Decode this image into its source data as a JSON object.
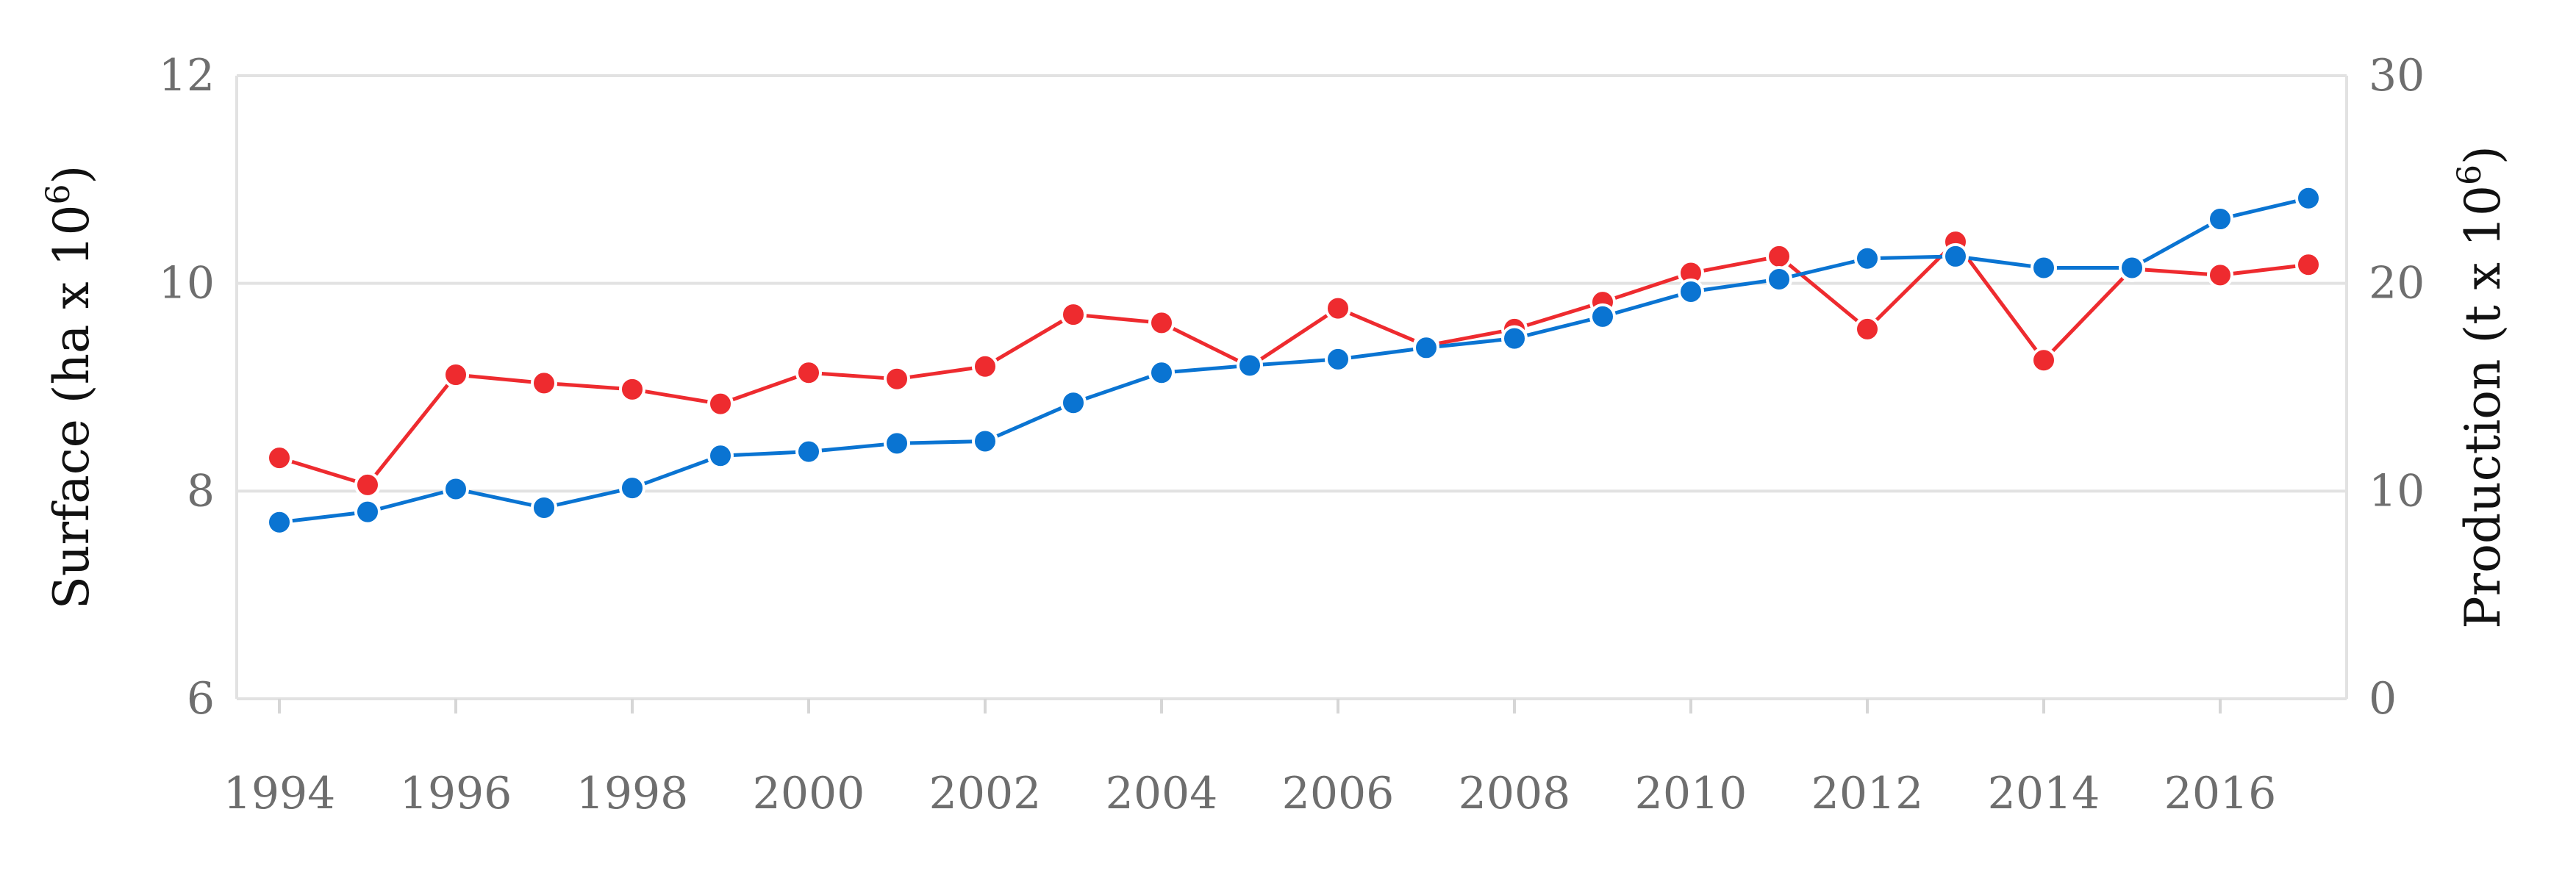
{
  "chart_data": {
    "type": "line",
    "x": [
      1994,
      1995,
      1996,
      1997,
      1998,
      1999,
      2000,
      2001,
      2002,
      2003,
      2004,
      2005,
      2006,
      2007,
      2008,
      2009,
      2010,
      2011,
      2012,
      2013,
      2014,
      2015,
      2016,
      2017
    ],
    "x_ticks": [
      "1994",
      "1996",
      "1998",
      "2000",
      "2002",
      "2004",
      "2006",
      "2008",
      "2010",
      "2012",
      "2014",
      "2016"
    ],
    "y_left": {
      "label": "Surface (ha x 10",
      "label_sup": "6",
      "label_close": ")",
      "range": [
        6,
        12
      ],
      "ticks": [
        "6",
        "8",
        "10",
        "12"
      ]
    },
    "y_right": {
      "label": "Production (t x 10",
      "label_sup": "6",
      "label_close": ")",
      "range": [
        0,
        30
      ],
      "ticks": [
        "0",
        "10",
        "20",
        "30"
      ]
    },
    "grid": true,
    "series": [
      {
        "axis": "left",
        "color": "#0a74d2",
        "values": [
          7.7,
          7.8,
          8.02,
          7.84,
          8.03,
          8.34,
          8.38,
          8.46,
          8.48,
          8.85,
          9.14,
          9.21,
          9.27,
          9.38,
          9.47,
          9.68,
          9.92,
          10.04,
          10.24,
          10.26,
          10.15,
          10.15,
          10.62,
          10.82
        ]
      },
      {
        "axis": "right",
        "color": "#ee2b2f",
        "values": [
          11.6,
          10.3,
          15.6,
          15.2,
          14.9,
          14.2,
          15.7,
          15.4,
          16.0,
          18.5,
          18.1,
          16.0,
          18.8,
          17.0,
          17.8,
          19.1,
          20.5,
          21.3,
          17.8,
          22.0,
          16.3,
          20.7,
          20.4,
          20.9
        ]
      }
    ]
  }
}
